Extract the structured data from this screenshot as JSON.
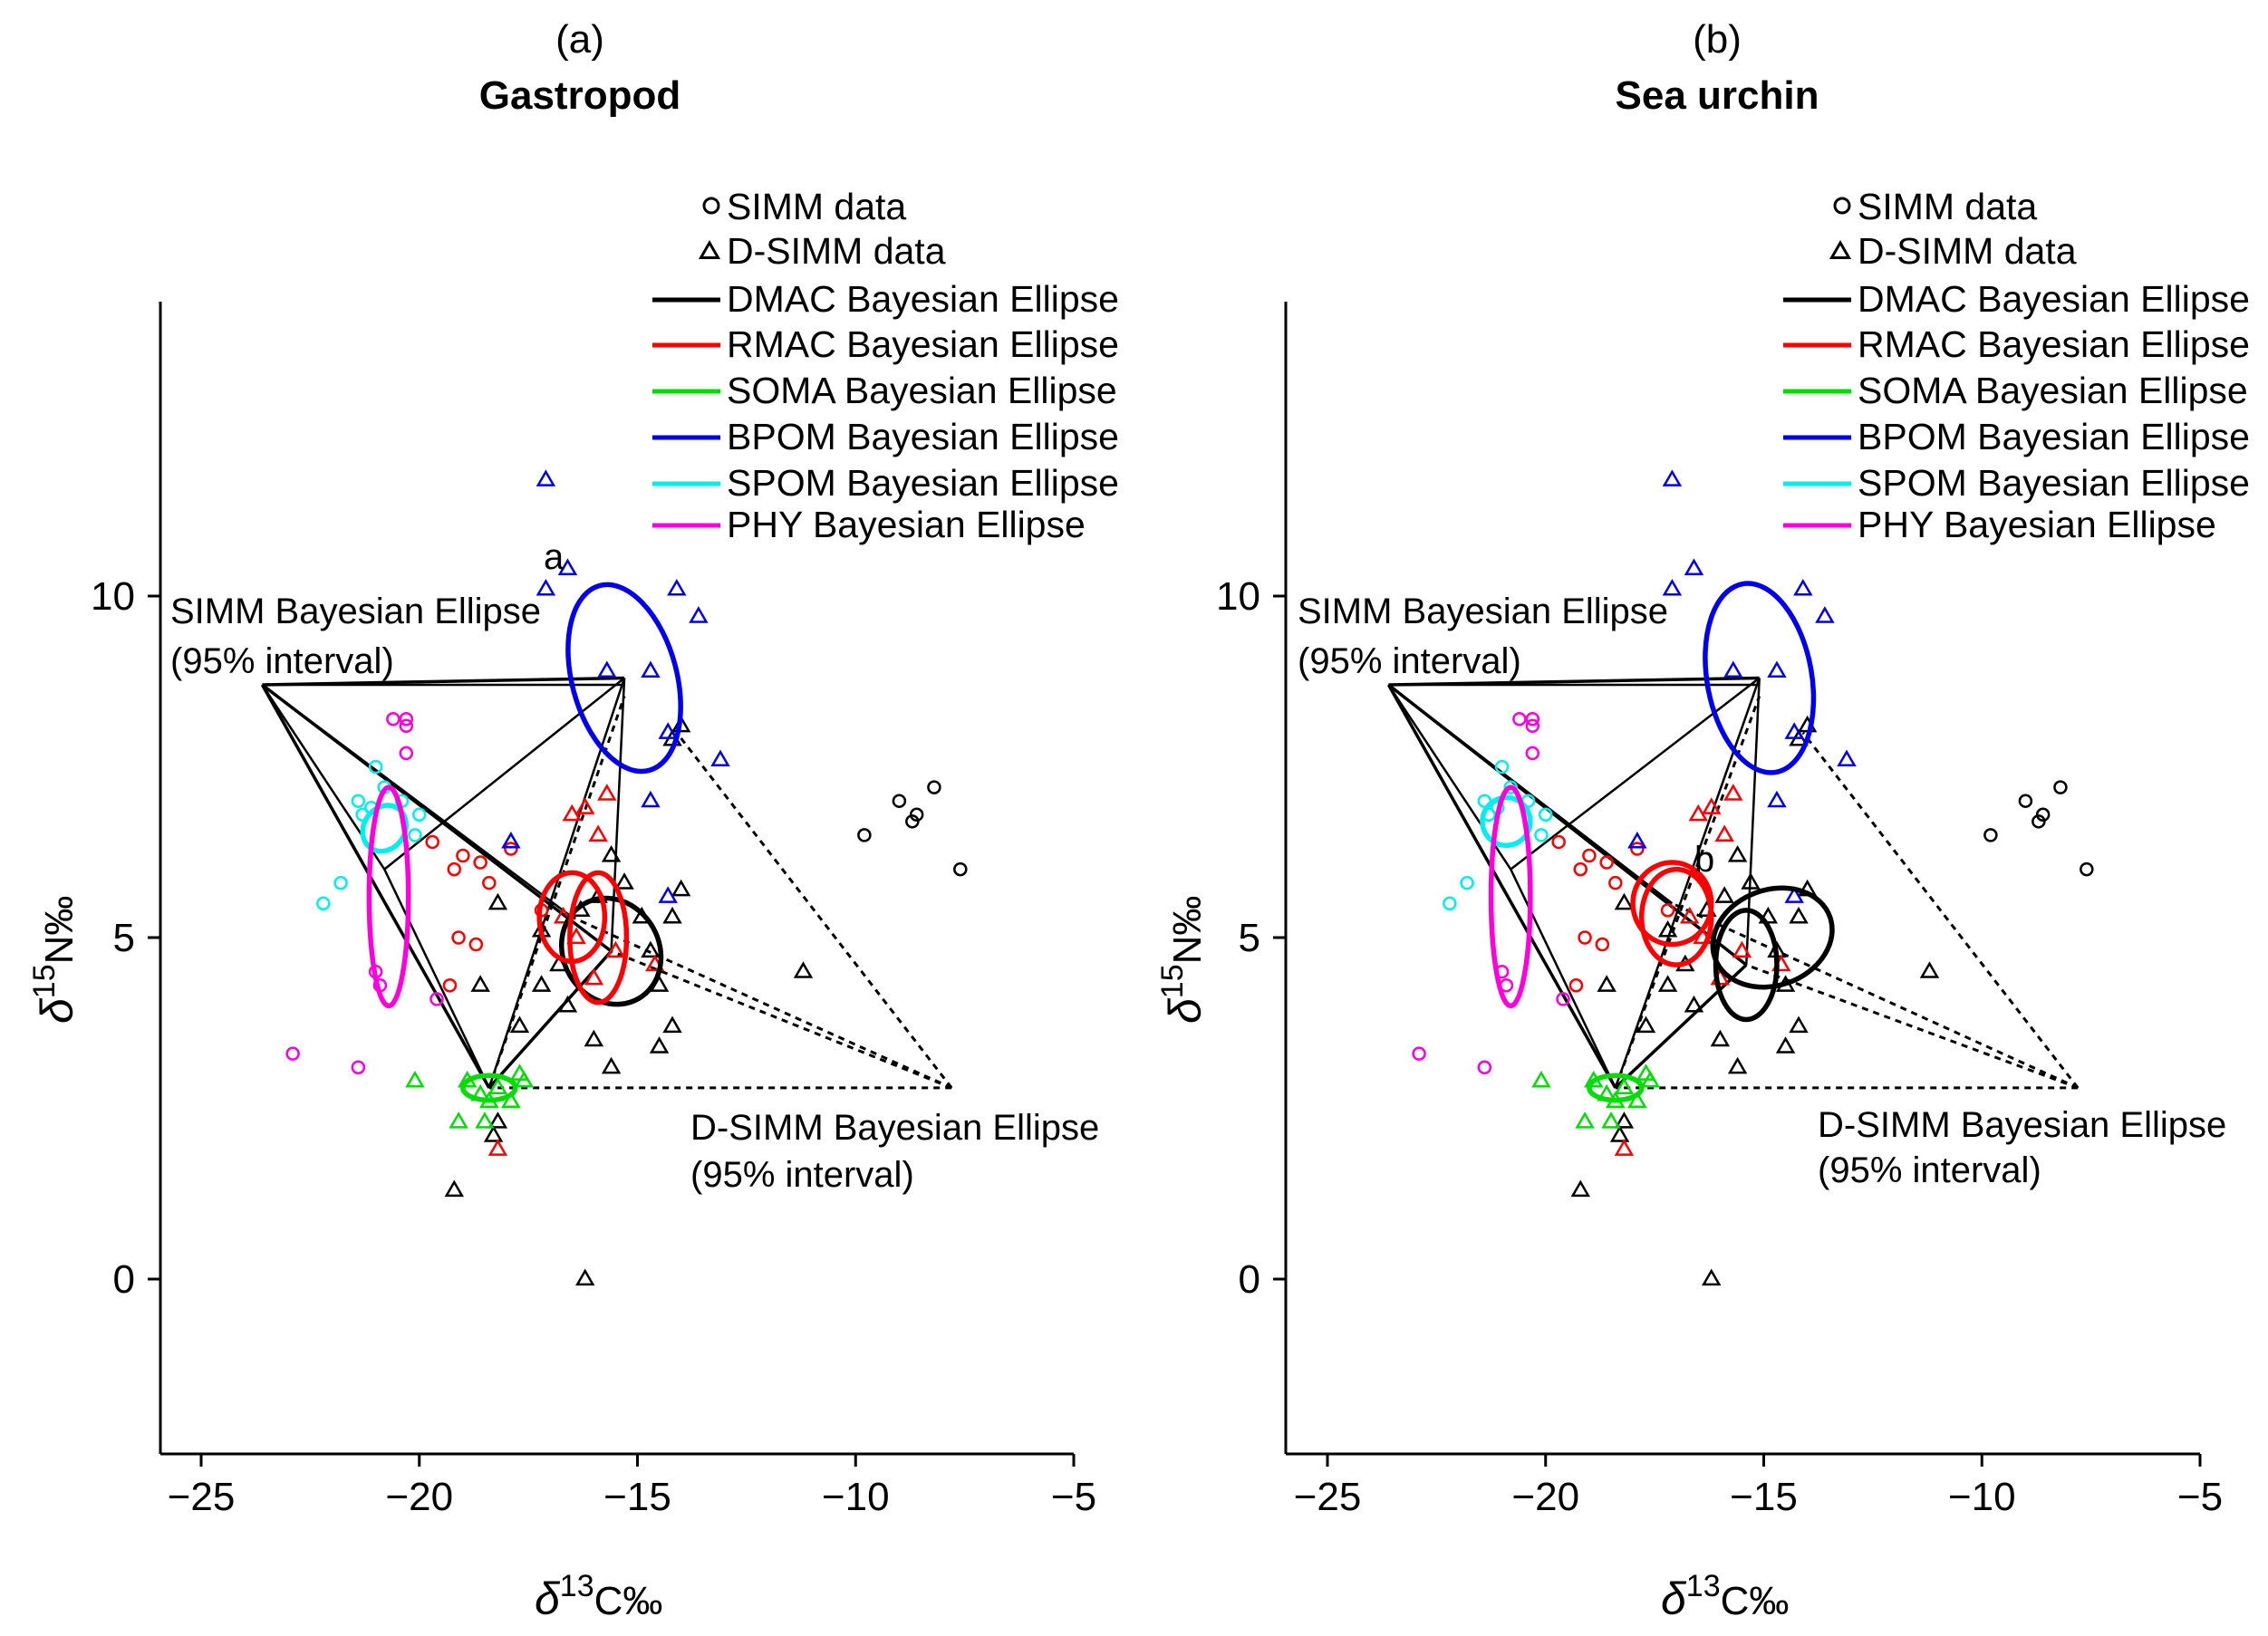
{
  "figure": {
    "panels": [
      {
        "label": "(a)",
        "title": "Gastropod",
        "marker": "a"
      },
      {
        "label": "(b)",
        "title": "Sea urchin",
        "marker": "b"
      }
    ],
    "xlabel": "δ13C‰",
    "ylabel": "δ15N‰",
    "xticks": [
      "−25",
      "−20",
      "−15",
      "−10",
      "−5"
    ],
    "yticks": [
      "0",
      "5",
      "10"
    ],
    "legend": [
      {
        "label": "SIMM data",
        "kind": "circle",
        "color": "#000000"
      },
      {
        "label": "D-SIMM data",
        "kind": "triangle",
        "color": "#000000"
      },
      {
        "label": "DMAC Bayesian Ellipse",
        "kind": "line",
        "color": "#000000"
      },
      {
        "label": "RMAC Bayesian Ellipse",
        "kind": "line",
        "color": "#ff0000"
      },
      {
        "label": "SOMA Bayesian Ellipse",
        "kind": "line",
        "color": "#00dd00"
      },
      {
        "label": "BPOM Bayesian Ellipse",
        "kind": "line",
        "color": "#0000ee"
      },
      {
        "label": "SPOM Bayesian Ellipse",
        "kind": "line",
        "color": "#00eeee"
      },
      {
        "label": "PHY Bayesian Ellipse",
        "kind": "line",
        "color": "#ff00dd"
      }
    ],
    "annotations": {
      "simm_line1": "SIMM Bayesian Ellipse",
      "simm_line2": "(95% interval)",
      "dsimm_line1": "D-SIMM Bayesian Ellipse",
      "dsimm_line2": "(95% interval)"
    }
  },
  "chart_data": [
    {
      "type": "scatter",
      "title": "Gastropod",
      "xlabel": "δ13C‰",
      "ylabel": "δ15N‰",
      "xlim": [
        -25.7,
        -5
      ],
      "ylim": [
        -2.6,
        14.4
      ],
      "consumer_simm": [
        -23.6,
        8.7
      ],
      "consumer_dsimm": [
        -7.8,
        2.8
      ],
      "series": [
        {
          "name": "DMAC",
          "color": "#000000",
          "ellipse": {
            "cx": -15.6,
            "cy": 4.8,
            "rx": 1.1,
            "ry": 0.8,
            "rot": -30
          },
          "triangles": [
            [
              -18.2,
              5.5
            ],
            [
              -17.2,
              5.1
            ],
            [
              -16.8,
              4.6
            ],
            [
              -16.3,
              5.4
            ],
            [
              -15.9,
              5.6
            ],
            [
              -15.6,
              6.2
            ],
            [
              -15.3,
              5.8
            ],
            [
              -14.9,
              5.3
            ],
            [
              -14.7,
              4.8
            ],
            [
              -14.5,
              4.3
            ],
            [
              -14.2,
              3.7
            ],
            [
              -14.5,
              3.4
            ],
            [
              -15.6,
              3.1
            ],
            [
              -16.0,
              3.5
            ],
            [
              -16.6,
              4.0
            ],
            [
              -17.2,
              4.3
            ],
            [
              -17.7,
              3.7
            ],
            [
              -18.6,
              4.3
            ],
            [
              -18.2,
              2.3
            ],
            [
              -18.3,
              2.1
            ],
            [
              -19.2,
              1.3
            ],
            [
              -16.2,
              0.0
            ],
            [
              -14.0,
              5.7
            ],
            [
              -14.2,
              5.3
            ],
            [
              -11.2,
              4.5
            ],
            [
              -14.0,
              8.1
            ],
            [
              -14.2,
              7.9
            ]
          ],
          "circles": [
            [
              -9.8,
              6.5
            ],
            [
              -9.0,
              7.0
            ],
            [
              -8.7,
              6.7
            ],
            [
              -8.6,
              6.8
            ],
            [
              -8.2,
              7.2
            ],
            [
              -7.6,
              6.0
            ]
          ]
        },
        {
          "name": "RMAC",
          "color": "#ff0000",
          "ellipse": {
            "cx": -16.5,
            "cy": 5.3,
            "rx": 0.75,
            "ry": 0.65,
            "rot": 0
          },
          "ellipse2": {
            "cx": -15.9,
            "cy": 5.0,
            "rx": 0.65,
            "ry": 0.95,
            "rot": 0
          },
          "triangles": [
            [
              -16.5,
              6.8
            ],
            [
              -16.2,
              6.9
            ],
            [
              -15.7,
              7.1
            ],
            [
              -15.9,
              6.5
            ],
            [
              -16.7,
              5.3
            ],
            [
              -16.4,
              5.0
            ],
            [
              -16.0,
              4.4
            ],
            [
              -15.5,
              4.8
            ],
            [
              -14.6,
              4.6
            ],
            [
              -18.2,
              1.9
            ]
          ],
          "circles": [
            [
              -19.7,
              6.4
            ],
            [
              -19.2,
              6.0
            ],
            [
              -19.0,
              6.2
            ],
            [
              -18.6,
              6.1
            ],
            [
              -18.4,
              5.8
            ],
            [
              -17.9,
              6.3
            ],
            [
              -19.1,
              5.0
            ],
            [
              -18.7,
              4.9
            ],
            [
              -19.3,
              4.3
            ],
            [
              -17.2,
              5.4
            ]
          ]
        },
        {
          "name": "SOMA",
          "color": "#00dd00",
          "ellipse": {
            "cx": -18.4,
            "cy": 2.8,
            "rx": 0.6,
            "ry": 0.18,
            "rot": 0
          },
          "triangles": [
            [
              -20.1,
              2.9
            ],
            [
              -18.9,
              2.9
            ],
            [
              -18.6,
              2.7
            ],
            [
              -18.4,
              2.6
            ],
            [
              -18.2,
              2.8
            ],
            [
              -17.9,
              2.6
            ],
            [
              -17.7,
              3.0
            ],
            [
              -17.6,
              2.9
            ],
            [
              -19.1,
              2.3
            ],
            [
              -18.5,
              2.3
            ]
          ]
        },
        {
          "name": "BPOM",
          "color": "#0000ee",
          "ellipse": {
            "cx": -15.3,
            "cy": 8.8,
            "rx": 1.2,
            "ry": 1.4,
            "rot": -15
          },
          "triangles": [
            [
              -17.1,
              11.7
            ],
            [
              -16.6,
              10.4
            ],
            [
              -17.1,
              10.1
            ],
            [
              -14.1,
              10.1
            ],
            [
              -13.6,
              9.7
            ],
            [
              -15.7,
              8.9
            ],
            [
              -14.7,
              8.9
            ],
            [
              -14.3,
              8.0
            ],
            [
              -13.1,
              7.6
            ],
            [
              -14.7,
              7.0
            ],
            [
              -17.9,
              6.4
            ],
            [
              -14.3,
              5.6
            ]
          ]
        },
        {
          "name": "SPOM",
          "color": "#00eeee",
          "ellipse": {
            "cx": -20.8,
            "cy": 6.6,
            "rx": 0.55,
            "ry": 0.3,
            "rot": -55
          },
          "circles": [
            [
              -21.0,
              7.5
            ],
            [
              -20.8,
              7.2
            ],
            [
              -21.4,
              7.0
            ],
            [
              -21.3,
              6.8
            ],
            [
              -21.1,
              6.9
            ],
            [
              -20.4,
              7.0
            ],
            [
              -20.0,
              6.8
            ],
            [
              -20.1,
              6.5
            ],
            [
              -21.8,
              5.8
            ],
            [
              -22.2,
              5.5
            ]
          ]
        },
        {
          "name": "PHY",
          "color": "#ff00dd",
          "ellipse": {
            "cx": -20.7,
            "cy": 5.6,
            "rx": 0.45,
            "ry": 1.6,
            "rot": 0
          },
          "circles": [
            [
              -20.6,
              8.2
            ],
            [
              -20.3,
              8.2
            ],
            [
              -20.3,
              8.1
            ],
            [
              -20.3,
              7.7
            ],
            [
              -21.0,
              4.5
            ],
            [
              -20.9,
              4.3
            ],
            [
              -19.6,
              4.1
            ],
            [
              -22.9,
              3.3
            ],
            [
              -21.4,
              3.1
            ]
          ]
        }
      ]
    },
    {
      "type": "scatter",
      "title": "Sea urchin",
      "xlabel": "δ13C‰",
      "ylabel": "δ15N‰",
      "xlim": [
        -25.7,
        -5
      ],
      "ylim": [
        -2.6,
        14.4
      ],
      "consumer_simm": [
        -23.6,
        8.7
      ],
      "consumer_dsimm": [
        -7.8,
        2.8
      ],
      "series": [
        {
          "name": "DMAC",
          "color": "#000000",
          "ellipse": {
            "cx": -15.4,
            "cy": 4.6,
            "rx": 0.7,
            "ry": 0.8,
            "rot": 0
          },
          "ellipse2": {
            "cx": -14.8,
            "cy": 5.0,
            "rx": 1.4,
            "ry": 0.7,
            "rot": -20
          },
          "triangles": [
            [
              -18.2,
              5.5
            ],
            [
              -17.2,
              5.1
            ],
            [
              -16.8,
              4.6
            ],
            [
              -16.3,
              5.4
            ],
            [
              -15.9,
              5.6
            ],
            [
              -15.6,
              6.2
            ],
            [
              -15.3,
              5.8
            ],
            [
              -14.9,
              5.3
            ],
            [
              -14.7,
              4.8
            ],
            [
              -14.5,
              4.3
            ],
            [
              -14.2,
              3.7
            ],
            [
              -14.5,
              3.4
            ],
            [
              -15.6,
              3.1
            ],
            [
              -16.0,
              3.5
            ],
            [
              -16.6,
              4.0
            ],
            [
              -17.2,
              4.3
            ],
            [
              -17.7,
              3.7
            ],
            [
              -18.6,
              4.3
            ],
            [
              -18.2,
              2.3
            ],
            [
              -18.3,
              2.1
            ],
            [
              -19.2,
              1.3
            ],
            [
              -16.2,
              0.0
            ],
            [
              -14.0,
              5.7
            ],
            [
              -14.2,
              5.3
            ],
            [
              -11.2,
              4.5
            ],
            [
              -14.0,
              8.1
            ],
            [
              -14.2,
              7.9
            ]
          ],
          "circles": [
            [
              -9.8,
              6.5
            ],
            [
              -9.0,
              7.0
            ],
            [
              -8.7,
              6.7
            ],
            [
              -8.6,
              6.8
            ],
            [
              -8.2,
              7.2
            ],
            [
              -7.6,
              6.0
            ]
          ]
        },
        {
          "name": "RMAC",
          "color": "#ff0000",
          "ellipse": {
            "cx": -17.1,
            "cy": 5.5,
            "rx": 0.9,
            "ry": 0.6,
            "rot": 0
          },
          "ellipse2": {
            "cx": -17.0,
            "cy": 5.3,
            "rx": 0.8,
            "ry": 0.7,
            "rot": 0
          },
          "triangles": [
            [
              -16.5,
              6.8
            ],
            [
              -16.2,
              6.9
            ],
            [
              -15.7,
              7.1
            ],
            [
              -15.9,
              6.5
            ],
            [
              -16.7,
              5.3
            ],
            [
              -16.4,
              5.0
            ],
            [
              -16.0,
              4.4
            ],
            [
              -15.5,
              4.8
            ],
            [
              -14.6,
              4.6
            ],
            [
              -18.2,
              1.9
            ]
          ],
          "circles": [
            [
              -19.7,
              6.4
            ],
            [
              -19.2,
              6.0
            ],
            [
              -19.0,
              6.2
            ],
            [
              -18.6,
              6.1
            ],
            [
              -18.4,
              5.8
            ],
            [
              -17.9,
              6.3
            ],
            [
              -19.1,
              5.0
            ],
            [
              -18.7,
              4.9
            ],
            [
              -19.3,
              4.3
            ],
            [
              -17.2,
              5.4
            ]
          ]
        },
        {
          "name": "SOMA",
          "color": "#00dd00",
          "ellipse": {
            "cx": -18.4,
            "cy": 2.8,
            "rx": 0.6,
            "ry": 0.18,
            "rot": 0
          },
          "triangles": [
            [
              -20.1,
              2.9
            ],
            [
              -18.9,
              2.9
            ],
            [
              -18.6,
              2.7
            ],
            [
              -18.4,
              2.6
            ],
            [
              -18.2,
              2.8
            ],
            [
              -17.9,
              2.6
            ],
            [
              -17.7,
              3.0
            ],
            [
              -17.6,
              2.9
            ],
            [
              -19.1,
              2.3
            ],
            [
              -18.5,
              2.3
            ]
          ]
        },
        {
          "name": "BPOM",
          "color": "#0000ee",
          "ellipse": {
            "cx": -15.1,
            "cy": 8.8,
            "rx": 1.2,
            "ry": 1.4,
            "rot": -10
          },
          "triangles": [
            [
              -17.1,
              11.7
            ],
            [
              -16.6,
              10.4
            ],
            [
              -17.1,
              10.1
            ],
            [
              -14.1,
              10.1
            ],
            [
              -13.6,
              9.7
            ],
            [
              -15.7,
              8.9
            ],
            [
              -14.7,
              8.9
            ],
            [
              -14.3,
              8.0
            ],
            [
              -13.1,
              7.6
            ],
            [
              -14.7,
              7.0
            ],
            [
              -17.9,
              6.4
            ],
            [
              -14.3,
              5.6
            ]
          ]
        },
        {
          "name": "SPOM",
          "color": "#00eeee",
          "ellipse": {
            "cx": -20.9,
            "cy": 6.7,
            "rx": 0.55,
            "ry": 0.35,
            "rot": -55
          },
          "circles": [
            [
              -21.0,
              7.5
            ],
            [
              -20.8,
              7.2
            ],
            [
              -21.4,
              7.0
            ],
            [
              -21.3,
              6.8
            ],
            [
              -21.1,
              6.9
            ],
            [
              -20.4,
              7.0
            ],
            [
              -20.0,
              6.8
            ],
            [
              -20.1,
              6.5
            ],
            [
              -21.8,
              5.8
            ],
            [
              -22.2,
              5.5
            ]
          ]
        },
        {
          "name": "PHY",
          "color": "#ff00dd",
          "ellipse": {
            "cx": -20.8,
            "cy": 5.6,
            "rx": 0.45,
            "ry": 1.6,
            "rot": 0
          },
          "circles": [
            [
              -20.6,
              8.2
            ],
            [
              -20.3,
              8.2
            ],
            [
              -20.3,
              8.1
            ],
            [
              -20.3,
              7.7
            ],
            [
              -21.0,
              4.5
            ],
            [
              -20.9,
              4.3
            ],
            [
              -19.6,
              4.1
            ],
            [
              -22.9,
              3.3
            ],
            [
              -21.4,
              3.1
            ]
          ]
        }
      ]
    }
  ]
}
